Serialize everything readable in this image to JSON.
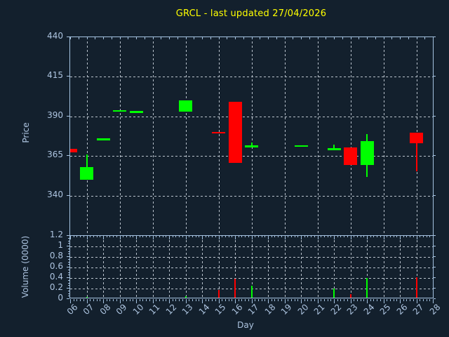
{
  "title": "GRCL - last updated 27/04/2026",
  "colors": {
    "background": "#13202d",
    "title": "#ffff00",
    "axis": "#a5c3e1",
    "tick_label": "#adc4e0",
    "grid": "#b9c2cc",
    "up": "#00ff00",
    "down": "#ff0000"
  },
  "chart_data": {
    "type": "candlestick",
    "title": "GRCL - last updated 27/04/2026",
    "xlabel": "Day",
    "x_tick_labels": [
      "06",
      "07",
      "08",
      "09",
      "10",
      "11",
      "12",
      "13",
      "14",
      "15",
      "16",
      "17",
      "18",
      "19",
      "20",
      "21",
      "22",
      "23",
      "24",
      "25",
      "26",
      "27",
      "28"
    ],
    "x_first_day": 6,
    "x_last_day": 28,
    "grid_style": "dashed",
    "price_panel": {
      "ylabel": "Price",
      "yticks": [
        340,
        365,
        390,
        415,
        440
      ],
      "ylim": [
        315,
        440
      ],
      "grid_days": [
        7,
        9,
        11,
        13,
        15,
        17,
        19,
        21,
        23,
        25,
        27
      ],
      "candles": [
        {
          "day": 6,
          "open": 369.5,
          "high": 369.5,
          "low": 367.3,
          "close": 367.3,
          "direction": "down"
        },
        {
          "day": 7,
          "open": 350.2,
          "high": 365.9,
          "low": 350.2,
          "close": 358.1,
          "direction": "up"
        },
        {
          "day": 8,
          "open": 375.8,
          "high": 376.1,
          "low": 375.8,
          "close": 376.1,
          "direction": "up"
        },
        {
          "day": 9,
          "open": 393.8,
          "high": 394.1,
          "low": 393.8,
          "close": 394.1,
          "direction": "up"
        },
        {
          "day": 10,
          "open": 393.0,
          "high": 393.3,
          "low": 393.0,
          "close": 393.3,
          "direction": "up"
        },
        {
          "day": 13,
          "open": 393.0,
          "high": 400.0,
          "low": 393.0,
          "close": 400.0,
          "direction": "up"
        },
        {
          "day": 15,
          "open": 380.2,
          "high": 380.2,
          "low": 379.6,
          "close": 379.6,
          "direction": "down"
        },
        {
          "day": 16,
          "open": 399.2,
          "high": 399.2,
          "low": 360.5,
          "close": 360.5,
          "direction": "down"
        },
        {
          "day": 17,
          "open": 371.2,
          "high": 373.7,
          "low": 371.2,
          "close": 371.6,
          "direction": "up"
        },
        {
          "day": 20,
          "open": 371.5,
          "high": 371.9,
          "low": 371.5,
          "close": 371.9,
          "direction": "up"
        },
        {
          "day": 22,
          "open": 369.5,
          "high": 372.2,
          "low": 369.5,
          "close": 369.9,
          "direction": "up"
        },
        {
          "day": 23,
          "open": 370.4,
          "high": 370.4,
          "low": 359.5,
          "close": 359.5,
          "direction": "down"
        },
        {
          "day": 24,
          "open": 359.5,
          "high": 379.0,
          "low": 352.0,
          "close": 374.2,
          "direction": "up"
        },
        {
          "day": 27,
          "open": 379.7,
          "high": 379.7,
          "low": 355.5,
          "close": 373.0,
          "direction": "down"
        }
      ]
    },
    "volume_panel": {
      "ylabel": "Volume (0000)",
      "yticks": [
        0,
        0.2,
        0.4,
        0.6,
        0.8,
        1,
        1.2
      ],
      "ytick_labels": [
        "0",
        "0.2",
        "0.4",
        "0.6",
        "0.8",
        "1",
        "1.2"
      ],
      "ylim": [
        0,
        1.2
      ],
      "bars": [
        {
          "day": 7,
          "value": 0.04,
          "direction": "up"
        },
        {
          "day": 8,
          "value": 0.03,
          "direction": "up"
        },
        {
          "day": 9,
          "value": 0.03,
          "direction": "up"
        },
        {
          "day": 10,
          "value": 0.03,
          "direction": "up"
        },
        {
          "day": 13,
          "value": 0.05,
          "direction": "up"
        },
        {
          "day": 15,
          "value": 0.18,
          "direction": "down"
        },
        {
          "day": 16,
          "value": 0.39,
          "direction": "down"
        },
        {
          "day": 17,
          "value": 0.26,
          "direction": "up"
        },
        {
          "day": 20,
          "value": 0.02,
          "direction": "up"
        },
        {
          "day": 22,
          "value": 0.2,
          "direction": "up"
        },
        {
          "day": 23,
          "value": 0.1,
          "direction": "down"
        },
        {
          "day": 24,
          "value": 0.4,
          "direction": "up"
        },
        {
          "day": 27,
          "value": 0.41,
          "direction": "down"
        }
      ]
    }
  }
}
